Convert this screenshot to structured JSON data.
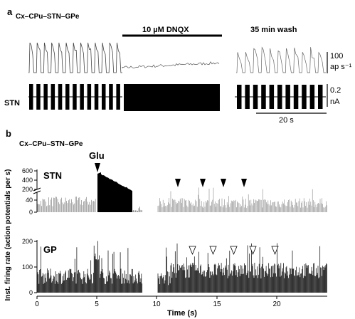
{
  "figure": {
    "panel_a": {
      "letter": "a",
      "prep": "Cx–CPu–STN–GPe",
      "drug": "10 µM DNQX",
      "wash": "35 min wash",
      "trace_label": "STN",
      "rate_scale": [
        "100",
        "ap s⁻¹"
      ],
      "current_scale": [
        "0.2",
        "nA"
      ],
      "time_scale": "20 s"
    },
    "panel_b": {
      "letter": "b",
      "prep": "Cx–CPu–STN–GPe",
      "stim": "Glu",
      "y_axis_label": "Inst. firing rate (action potentials per s)",
      "x_axis_label": "Time (s)",
      "x_ticks": [
        "0",
        "5",
        "10",
        "15",
        "20"
      ],
      "stn": {
        "name": "STN",
        "y_ticks_upper": [
          "600",
          "400",
          "200"
        ],
        "y_ticks_lower": [
          "40",
          "0"
        ]
      },
      "gp": {
        "name": "GP",
        "y_ticks": [
          "200",
          "100",
          "0"
        ]
      }
    }
  }
}
